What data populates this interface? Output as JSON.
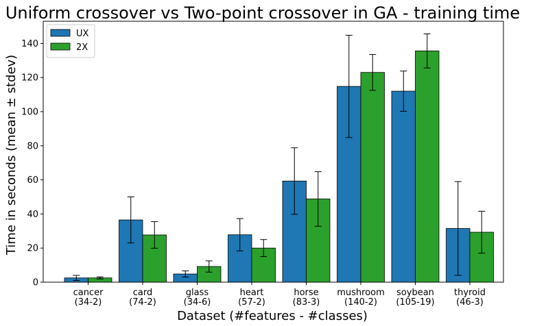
{
  "chart_data": {
    "type": "bar",
    "title": "Uniform crossover vs Two-point crossover in GA - training time",
    "xlabel": "Dataset (#features - #classes)",
    "ylabel": "Time in seconds (mean ± stdev)",
    "categories": [
      [
        "cancer",
        "(34-2)"
      ],
      [
        "card",
        "(74-2)"
      ],
      [
        "glass",
        "(34-6)"
      ],
      [
        "heart",
        "(57-2)"
      ],
      [
        "horse",
        "(83-3)"
      ],
      [
        "mushroom",
        "(140-2)"
      ],
      [
        "soybean",
        "(105-19)"
      ],
      [
        "thyroid",
        "(46-3)"
      ]
    ],
    "series": [
      {
        "name": "UX",
        "color": "#1f77b4",
        "values": [
          2.5,
          36.5,
          4.8,
          27.8,
          59.3,
          114.8,
          112.0,
          31.5
        ],
        "stdev": [
          1.5,
          13.5,
          1.8,
          9.5,
          19.5,
          30.0,
          11.8,
          27.5
        ]
      },
      {
        "name": "2X",
        "color": "#2ca02c",
        "values": [
          2.5,
          27.7,
          9.2,
          20.0,
          48.8,
          123.0,
          135.6,
          29.3
        ],
        "stdev": [
          0.6,
          7.8,
          3.3,
          5.0,
          16.0,
          10.5,
          10.0,
          12.3
        ]
      }
    ],
    "ylim": [
      0,
      153
    ],
    "yticks": [
      0,
      20,
      40,
      60,
      80,
      100,
      120,
      140
    ],
    "grid": false,
    "legend_position": "top-left"
  }
}
